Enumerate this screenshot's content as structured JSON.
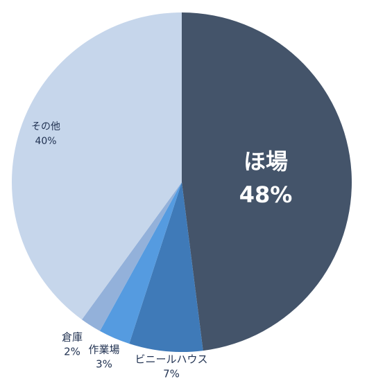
{
  "chart_data": {
    "type": "pie",
    "categories": [
      "ほ場",
      "ビニールハウス",
      "作業場",
      "倉庫",
      "その他"
    ],
    "values": [
      48,
      7,
      3,
      2,
      40
    ],
    "value_labels": [
      "48%",
      "7%",
      "3%",
      "2%",
      "40%"
    ],
    "colors": [
      "#44546a",
      "#3f7ab8",
      "#559be0",
      "#93b1da",
      "#c6d6eb"
    ]
  }
}
